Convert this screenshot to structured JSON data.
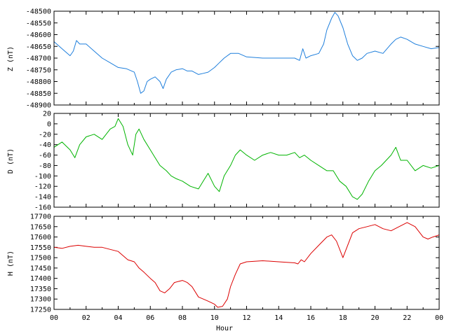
{
  "chart_data": {
    "type": "line",
    "xlabel": "Hour",
    "x_tick_labels": [
      "00",
      "02",
      "04",
      "06",
      "08",
      "10",
      "12",
      "14",
      "16",
      "18",
      "20",
      "22",
      "00"
    ],
    "xlim": [
      0,
      24
    ],
    "panels": [
      {
        "name": "z",
        "ylabel": "Z (nT)",
        "ylim": [
          -48900,
          -48500
        ],
        "yticks": [
          -48500,
          -48550,
          -48600,
          -48650,
          -48700,
          -48750,
          -48800,
          -48850,
          -48900
        ],
        "color": "#1f7fdc",
        "series": [
          {
            "x": [
              0,
              0.5,
              1,
              1.2,
              1.4,
              1.6,
              2,
              2.5,
              3,
              3.5,
              4,
              4.5,
              5,
              5.2,
              5.4,
              5.6,
              5.8,
              6,
              6.3,
              6.6,
              6.8,
              7,
              7.3,
              7.6,
              8,
              8.3,
              8.6,
              9,
              9.3,
              9.6,
              10,
              10.3,
              10.6,
              11,
              11.5,
              12,
              13,
              14,
              15,
              15.3,
              15.5,
              15.7,
              16,
              16.5,
              16.8,
              17,
              17.3,
              17.5,
              17.7,
              18,
              18.3,
              18.6,
              18.9,
              19.2,
              19.5,
              20,
              20.5,
              21,
              21.3,
              21.6,
              22,
              22.5,
              23,
              23.5,
              24
            ],
            "y": [
              -48630,
              -48660,
              -48690,
              -48670,
              -48625,
              -48640,
              -48640,
              -48670,
              -48700,
              -48720,
              -48740,
              -48745,
              -48760,
              -48800,
              -48850,
              -48840,
              -48800,
              -48790,
              -48780,
              -48800,
              -48830,
              -48790,
              -48760,
              -48750,
              -48745,
              -48755,
              -48755,
              -48770,
              -48765,
              -48760,
              -48740,
              -48720,
              -48700,
              -48680,
              -48680,
              -48695,
              -48700,
              -48700,
              -48700,
              -48710,
              -48660,
              -48700,
              -48690,
              -48680,
              -48640,
              -48580,
              -48530,
              -48505,
              -48520,
              -48570,
              -48640,
              -48690,
              -48710,
              -48700,
              -48680,
              -48670,
              -48680,
              -48640,
              -48620,
              -48610,
              -48620,
              -48640,
              -48650,
              -48660,
              -48655
            ]
          }
        ]
      },
      {
        "name": "d",
        "ylabel": "D (nT)",
        "ylim": [
          -160,
          20
        ],
        "yticks": [
          20,
          0,
          -20,
          -40,
          -60,
          -80,
          -100,
          -120,
          -140,
          -160
        ],
        "color": "#00b400",
        "series": [
          {
            "x": [
              0,
              0.5,
              1,
              1.3,
              1.6,
              2,
              2.5,
              3,
              3.5,
              3.8,
              4,
              4.3,
              4.6,
              4.9,
              5.1,
              5.3,
              5.6,
              6,
              6.3,
              6.6,
              7,
              7.3,
              7.6,
              8,
              8.5,
              9,
              9.3,
              9.6,
              10,
              10.3,
              10.6,
              11,
              11.3,
              11.6,
              12,
              12.5,
              13,
              13.5,
              14,
              14.5,
              15,
              15.3,
              15.6,
              16,
              16.5,
              17,
              17.4,
              17.8,
              18.2,
              18.6,
              18.9,
              19.2,
              19.6,
              20,
              20.4,
              20.7,
              21,
              21.3,
              21.6,
              22,
              22.5,
              23,
              23.5,
              24
            ],
            "y": [
              -45,
              -35,
              -50,
              -65,
              -40,
              -25,
              -20,
              -30,
              -10,
              -5,
              10,
              -5,
              -40,
              -60,
              -20,
              -10,
              -30,
              -50,
              -65,
              -80,
              -90,
              -100,
              -105,
              -110,
              -120,
              -125,
              -110,
              -95,
              -120,
              -130,
              -100,
              -80,
              -60,
              -50,
              -60,
              -70,
              -60,
              -55,
              -60,
              -60,
              -55,
              -65,
              -60,
              -70,
              -80,
              -90,
              -90,
              -110,
              -120,
              -140,
              -145,
              -135,
              -110,
              -90,
              -80,
              -70,
              -60,
              -45,
              -70,
              -70,
              -90,
              -80,
              -85,
              -80
            ]
          }
        ]
      },
      {
        "name": "h",
        "ylabel": "H (nT)",
        "ylim": [
          17250,
          17700
        ],
        "yticks": [
          17700,
          17650,
          17600,
          17550,
          17500,
          17450,
          17400,
          17350,
          17300,
          17250
        ],
        "color": "#dc0000",
        "series": [
          {
            "x": [
              0,
              0.5,
              1,
              1.5,
              2,
              2.5,
              3,
              3.5,
              4,
              4.3,
              4.6,
              5,
              5.3,
              5.6,
              6,
              6.3,
              6.6,
              6.9,
              7.2,
              7.5,
              8,
              8.3,
              8.6,
              9,
              9.3,
              9.6,
              10,
              10.2,
              10.5,
              10.8,
              11,
              11.3,
              11.6,
              12,
              13,
              14,
              15,
              15.2,
              15.4,
              15.6,
              16,
              16.5,
              17,
              17.3,
              17.6,
              18,
              18.3,
              18.6,
              19,
              19.5,
              20,
              20.5,
              21,
              21.5,
              22,
              22.5,
              23,
              23.3,
              23.6,
              24
            ],
            "y": [
              17550,
              17545,
              17555,
              17560,
              17555,
              17550,
              17550,
              17540,
              17530,
              17510,
              17490,
              17480,
              17450,
              17430,
              17400,
              17380,
              17340,
              17330,
              17350,
              17380,
              17390,
              17380,
              17360,
              17310,
              17300,
              17290,
              17275,
              17260,
              17265,
              17300,
              17360,
              17420,
              17470,
              17480,
              17485,
              17480,
              17475,
              17470,
              17490,
              17480,
              17520,
              17560,
              17600,
              17610,
              17580,
              17500,
              17560,
              17620,
              17640,
              17650,
              17660,
              17640,
              17630,
              17650,
              17670,
              17650,
              17600,
              17590,
              17600,
              17610
            ]
          }
        ]
      }
    ]
  }
}
